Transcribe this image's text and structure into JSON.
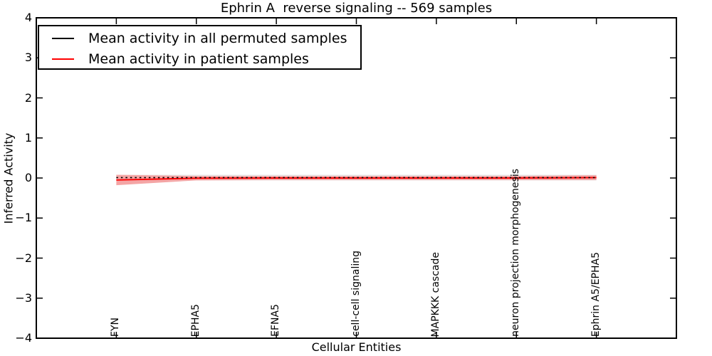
{
  "figure": {
    "title": "Ephrin A  reverse signaling -- 569 samples",
    "xlabel": "Cellular Entities",
    "ylabel": "Inferred Activity"
  },
  "legend": {
    "items": [
      {
        "label": "Mean activity in all permuted samples",
        "color": "#000000"
      },
      {
        "label": "Mean activity in patient samples",
        "color": "#ff0000"
      }
    ]
  },
  "chart_data": {
    "type": "line",
    "title": "Ephrin A  reverse signaling -- 569 samples",
    "xlabel": "Cellular Entities",
    "ylabel": "Inferred Activity",
    "ylim": [
      -4,
      4
    ],
    "ytick_values": [
      4,
      3,
      2,
      1,
      0,
      -1,
      -2,
      -3,
      -4
    ],
    "ytick_labels": [
      "4",
      "3",
      "2",
      "1",
      "0",
      "−1",
      "−2",
      "−3",
      "−4"
    ],
    "x_range_units": [
      -1,
      7
    ],
    "grid": false,
    "legend_position": "upper left",
    "categories": [
      "FYN",
      "EPHA5",
      "EFNA5",
      "cell-cell signaling",
      "MAPKKK cascade",
      "neuron projection morphogenesis",
      "Ephrin A5/EPHA5"
    ],
    "series": [
      {
        "name": "Mean activity in all permuted samples",
        "color": "#000000",
        "linestyle": "dotted",
        "values": [
          0.01,
          0.01,
          0.01,
          0.01,
          0.01,
          0.01,
          0.01
        ],
        "band_halfwidth": [
          0.07,
          0.07,
          0.07,
          0.07,
          0.07,
          0.07,
          0.07
        ],
        "band_color": "#e4e4e4"
      },
      {
        "name": "Mean activity in patient samples",
        "color": "#ff0000",
        "linestyle": "solid",
        "values": [
          -0.05,
          -0.005,
          0,
          0,
          0,
          0,
          0.01
        ],
        "band_halfwidth": [
          0.13,
          0.055,
          0.05,
          0.05,
          0.05,
          0.05,
          0.06
        ],
        "band_color": "#f4a5a5"
      }
    ]
  }
}
